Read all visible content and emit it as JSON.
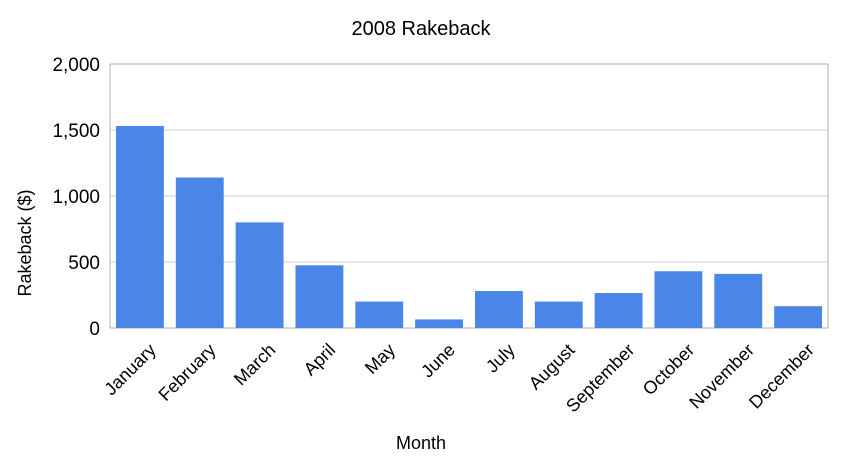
{
  "chart_data": {
    "type": "bar",
    "title": "2008 Rakeback",
    "xlabel": "Month",
    "ylabel": "Rakeback ($)",
    "categories": [
      "January",
      "February",
      "March",
      "April",
      "May",
      "June",
      "July",
      "August",
      "September",
      "October",
      "November",
      "December"
    ],
    "values": [
      1530,
      1140,
      800,
      475,
      200,
      65,
      280,
      200,
      265,
      430,
      410,
      165
    ],
    "ylim": [
      0,
      2000
    ],
    "yticks": [
      0,
      500,
      1000,
      1500,
      2000
    ],
    "ytick_labels": [
      "0",
      "500",
      "1,000",
      "1,500",
      "2,000"
    ],
    "grid": true,
    "legend": "none",
    "bar_color": "#4a86e8",
    "grid_color": "#cccccc",
    "axis_color": "#b3b3b3"
  }
}
